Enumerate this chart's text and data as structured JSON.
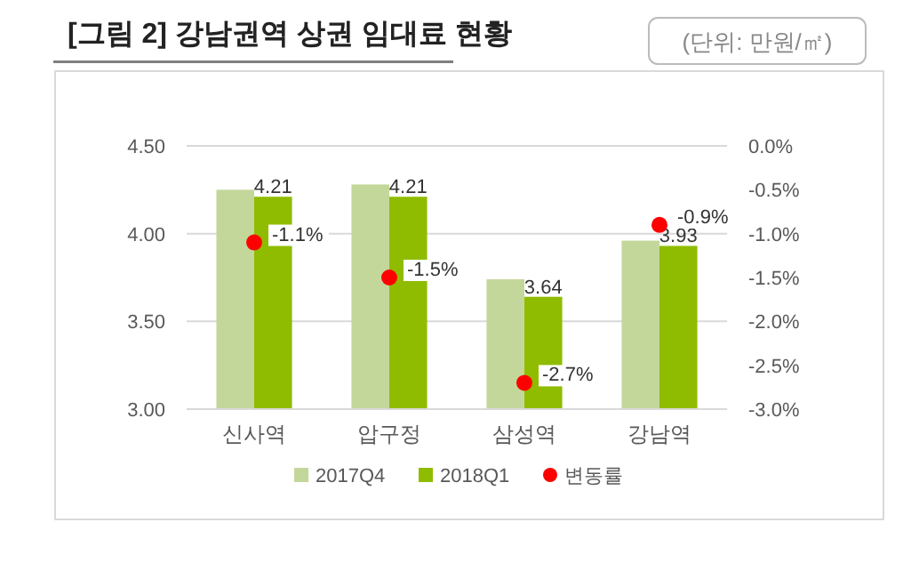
{
  "chart_data": {
    "type": "bar",
    "title": "[그림 2] 강남권역 상권 임대료 현황",
    "annotations": [
      "(단위: 만원/㎡)"
    ],
    "categories": [
      "신사역",
      "압구정",
      "삼성역",
      "강남역"
    ],
    "series": [
      {
        "name": "2017Q4",
        "color": "#c4d79b",
        "values": [
          4.25,
          4.28,
          3.74,
          3.96
        ]
      },
      {
        "name": "2018Q1",
        "color": "#8fbc00",
        "values": [
          4.21,
          4.21,
          3.64,
          3.93
        ],
        "value_labels": [
          "4.21",
          "4.21",
          "3.64",
          "3.93"
        ]
      },
      {
        "name": "변동률",
        "type": "scatter",
        "axis": "y2",
        "color": "#ff0000",
        "values": [
          -1.1,
          -1.5,
          -2.7,
          -0.9
        ],
        "value_labels": [
          "-1.1%",
          "-1.5%",
          "-2.7%",
          "-0.9%"
        ]
      }
    ],
    "ylim": [
      3.0,
      4.5
    ],
    "yticks": [
      {
        "value": 3.0,
        "label": "3.00"
      },
      {
        "value": 3.5,
        "label": "3.50"
      },
      {
        "value": 4.0,
        "label": "4.00"
      },
      {
        "value": 4.5,
        "label": "4.50"
      }
    ],
    "y2lim": [
      -3.0,
      0.0
    ],
    "y2ticks": [
      {
        "value": 0,
        "label": "0.0%"
      },
      {
        "value": -0.5,
        "label": "-0.5%"
      },
      {
        "value": -1.0,
        "label": "-1.0%"
      },
      {
        "value": -1.5,
        "label": "-1.5%"
      },
      {
        "value": -2.0,
        "label": "-2.0%"
      },
      {
        "value": -2.5,
        "label": "-2.5%"
      },
      {
        "value": -3.0,
        "label": "-3.0%"
      }
    ],
    "grid": "y",
    "legend": "bottom",
    "marker": "circle"
  }
}
